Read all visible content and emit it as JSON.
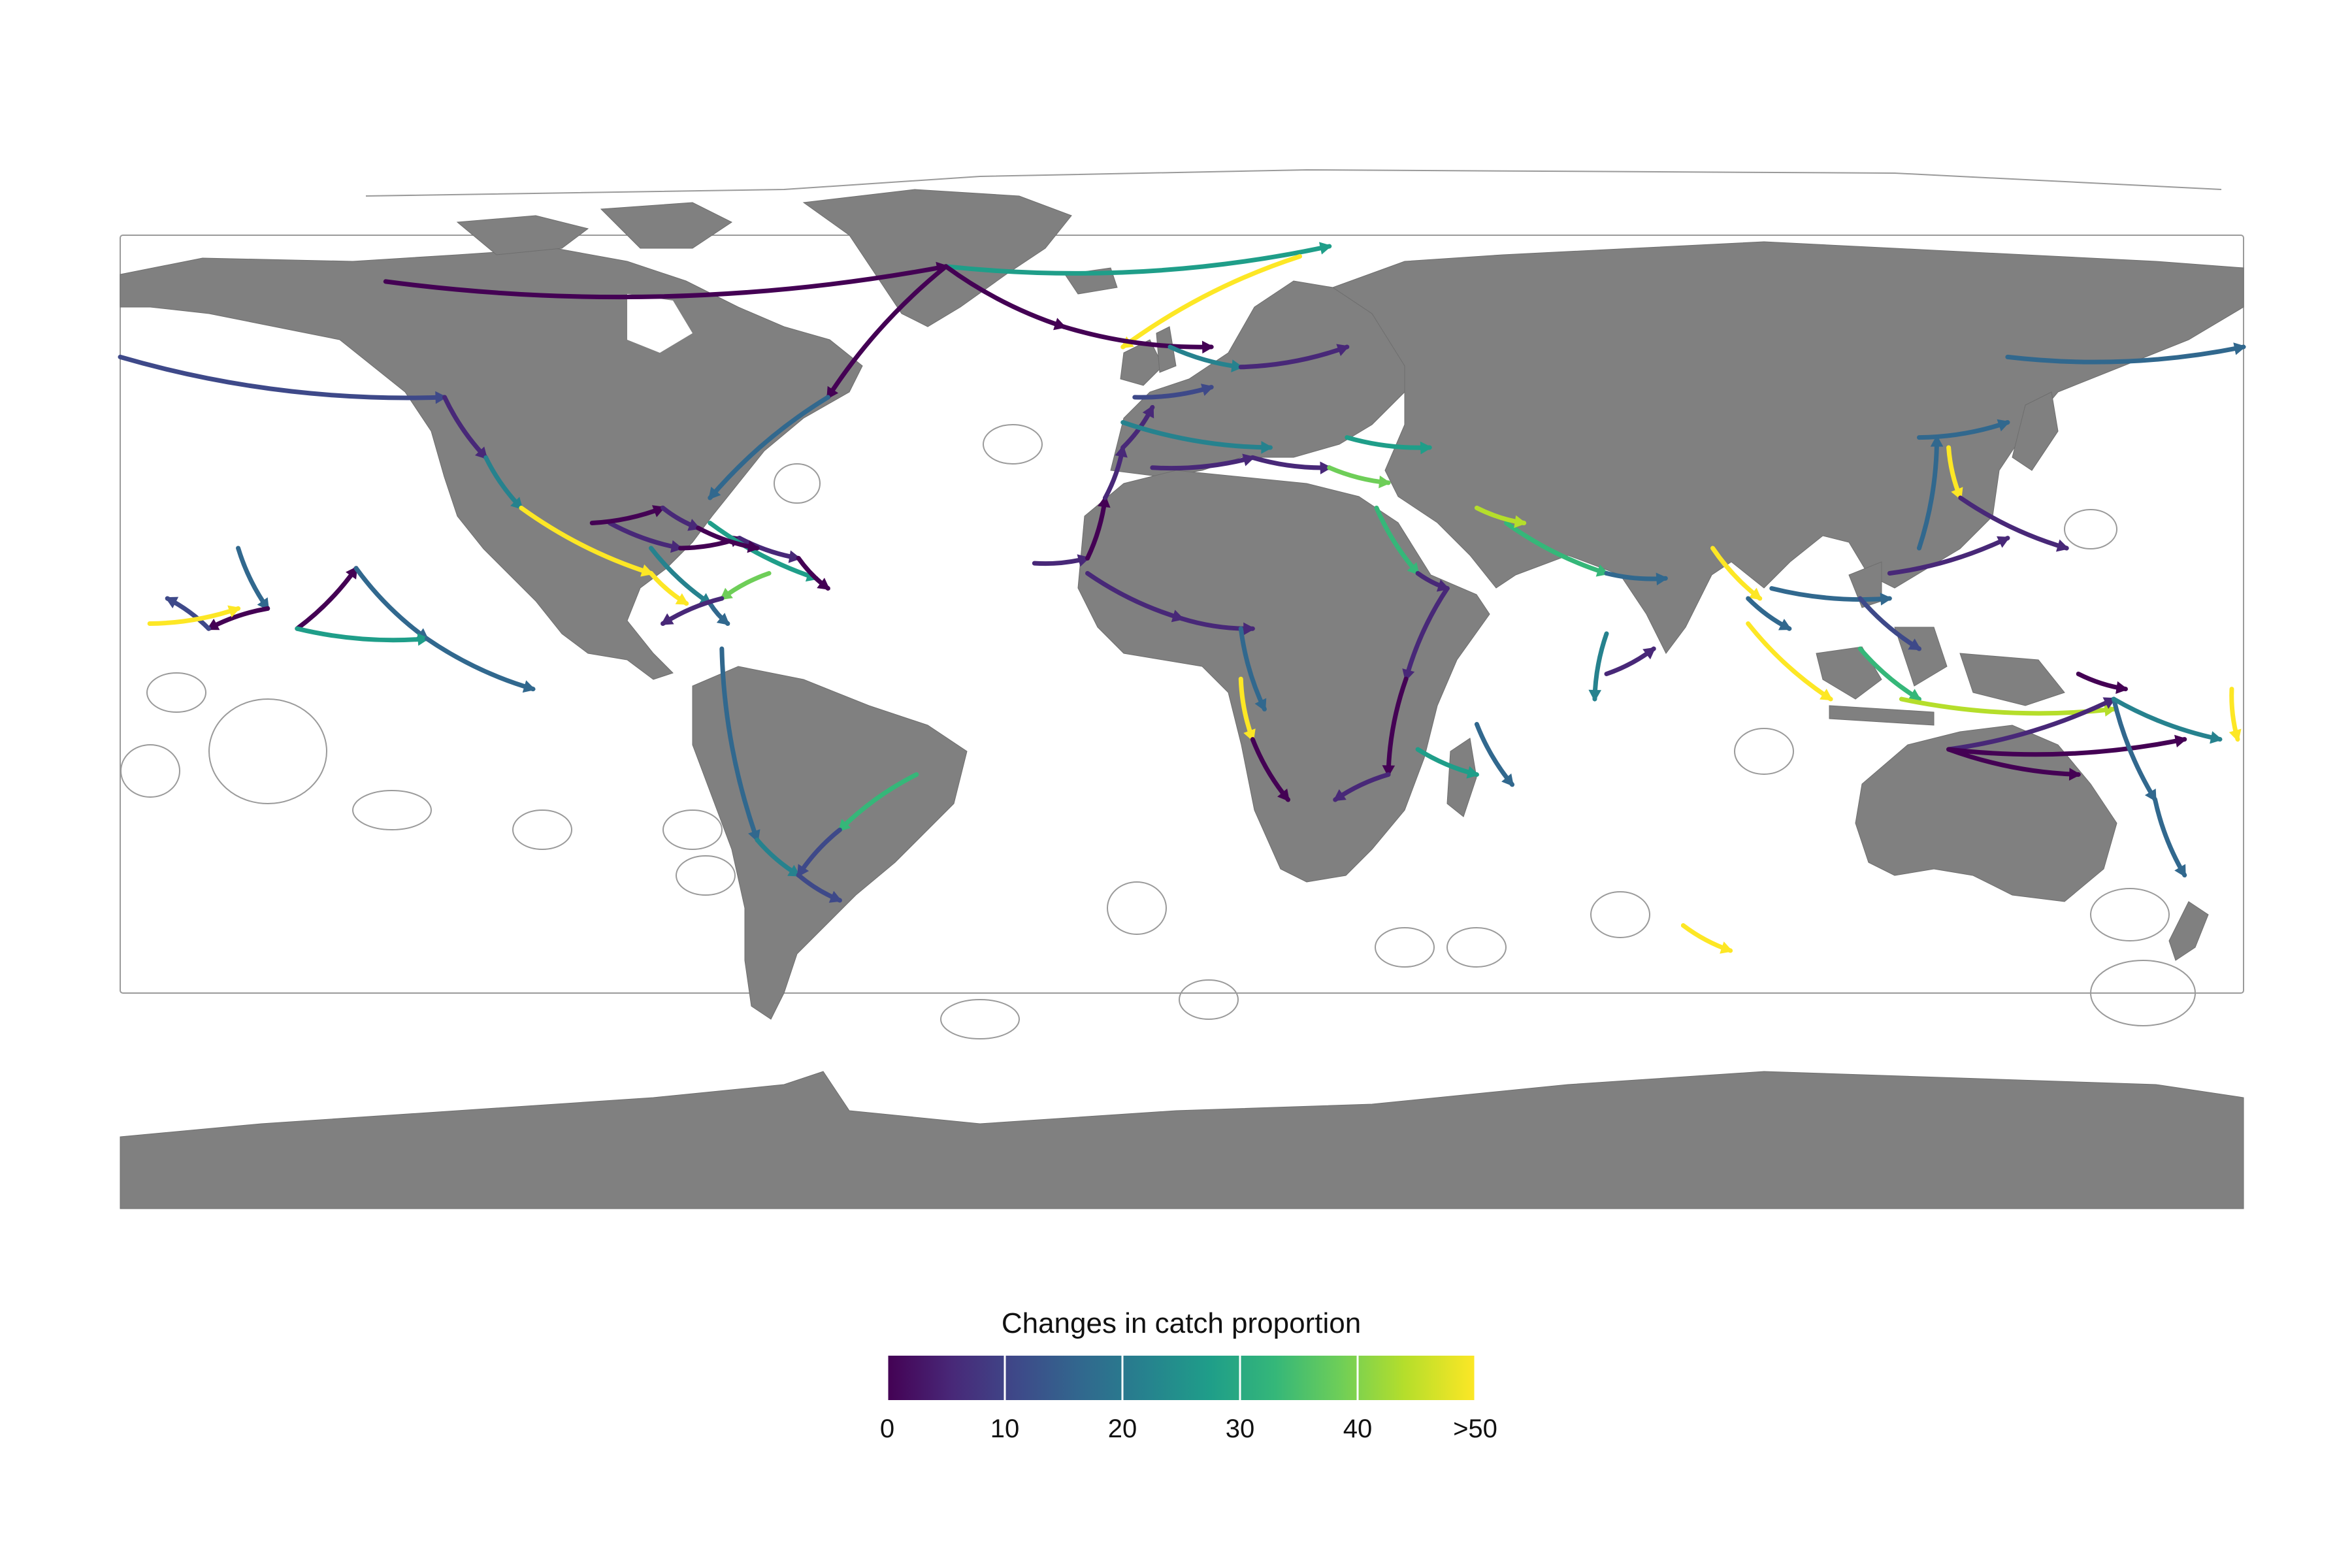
{
  "legend": {
    "title": "Changes in catch proportion",
    "ticks": [
      "0",
      "10",
      "20",
      "30",
      "40",
      ">50"
    ],
    "palette": [
      "#440154",
      "#482878",
      "#3e4989",
      "#31688e",
      "#26828e",
      "#1f9e89",
      "#35b779",
      "#6ece58",
      "#b5de2b",
      "#fde725"
    ]
  },
  "colors": {
    "land": "#808080",
    "eez_border": "#9a9a9a",
    "ocean": "#ffffff"
  },
  "map": {
    "type": "flow-map",
    "projection": "equirectangular-world",
    "basemap": "world land with EEZ outlines",
    "flows": [
      {
        "from": [
          -135,
          73
        ],
        "to": [
          -40,
          76
        ],
        "value": 0
      },
      {
        "from": [
          -40,
          76
        ],
        "to": [
          25,
          80
        ],
        "value": 30
      },
      {
        "from": [
          -40,
          76
        ],
        "to": [
          -60,
          50
        ],
        "value": 0
      },
      {
        "from": [
          -60,
          50
        ],
        "to": [
          -80,
          30
        ],
        "value": 15
      },
      {
        "from": [
          20,
          78
        ],
        "to": [
          -10,
          60
        ],
        "value": 55
      },
      {
        "from": [
          -40,
          76
        ],
        "to": [
          -20,
          64
        ],
        "value": 0
      },
      {
        "from": [
          -20,
          64
        ],
        "to": [
          5,
          60
        ],
        "value": 0
      },
      {
        "from": [
          -180,
          58
        ],
        "to": [
          -125,
          50
        ],
        "value": 12
      },
      {
        "from": [
          -125,
          50
        ],
        "to": [
          -118,
          38
        ],
        "value": 5
      },
      {
        "from": [
          -118,
          38
        ],
        "to": [
          -112,
          28
        ],
        "value": 20
      },
      {
        "from": [
          -112,
          28
        ],
        "to": [
          -90,
          15
        ],
        "value": 55
      },
      {
        "from": [
          -90,
          15
        ],
        "to": [
          -84,
          9
        ],
        "value": 50
      },
      {
        "from": [
          -97,
          25
        ],
        "to": [
          -85,
          20
        ],
        "value": 5
      },
      {
        "from": [
          -85,
          20
        ],
        "to": [
          -75,
          22
        ],
        "value": 0
      },
      {
        "from": [
          -75,
          22
        ],
        "to": [
          -65,
          18
        ],
        "value": 8
      },
      {
        "from": [
          -80,
          25
        ],
        "to": [
          -62,
          14
        ],
        "value": 30
      },
      {
        "from": [
          -90,
          20
        ],
        "to": [
          -80,
          9
        ],
        "value": 20
      },
      {
        "from": [
          -65,
          18
        ],
        "to": [
          -60,
          12
        ],
        "value": 2
      },
      {
        "from": [
          -70,
          15
        ],
        "to": [
          -78,
          10
        ],
        "value": 40
      },
      {
        "from": [
          -80,
          9
        ],
        "to": [
          -77,
          5
        ],
        "value": 18
      },
      {
        "from": [
          -100,
          25
        ],
        "to": [
          -88,
          28
        ],
        "value": 1
      },
      {
        "from": [
          -88,
          28
        ],
        "to": [
          -82,
          24
        ],
        "value": 3
      },
      {
        "from": [
          -82,
          24
        ],
        "to": [
          -72,
          20
        ],
        "value": 0
      },
      {
        "from": [
          -78,
          10
        ],
        "to": [
          -88,
          5
        ],
        "value": 6
      },
      {
        "from": [
          -78,
          0
        ],
        "to": [
          -72,
          -38
        ],
        "value": 15
      },
      {
        "from": [
          -72,
          -38
        ],
        "to": [
          -65,
          -45
        ],
        "value": 22
      },
      {
        "from": [
          -65,
          -45
        ],
        "to": [
          -58,
          -50
        ],
        "value": 10
      },
      {
        "from": [
          -45,
          -25
        ],
        "to": [
          -58,
          -36
        ],
        "value": 32
      },
      {
        "from": [
          -58,
          -36
        ],
        "to": [
          -65,
          -45
        ],
        "value": 10
      },
      {
        "from": [
          -160,
          20
        ],
        "to": [
          -155,
          8
        ],
        "value": 18
      },
      {
        "from": [
          -155,
          8
        ],
        "to": [
          -165,
          4
        ],
        "value": 0
      },
      {
        "from": [
          -165,
          4
        ],
        "to": [
          -172,
          10
        ],
        "value": 12
      },
      {
        "from": [
          -175,
          5
        ],
        "to": [
          -160,
          8
        ],
        "value": 50
      },
      {
        "from": [
          -150,
          4
        ],
        "to": [
          -140,
          16
        ],
        "value": 0
      },
      {
        "from": [
          -140,
          16
        ],
        "to": [
          -128,
          2
        ],
        "value": 14
      },
      {
        "from": [
          -150,
          4
        ],
        "to": [
          -128,
          2
        ],
        "value": 28
      },
      {
        "from": [
          -128,
          2
        ],
        "to": [
          -110,
          -8
        ],
        "value": 14
      },
      {
        "from": [
          -25,
          17
        ],
        "to": [
          -16,
          18
        ],
        "value": 8
      },
      {
        "from": [
          -16,
          18
        ],
        "to": [
          -13,
          30
        ],
        "value": 2
      },
      {
        "from": [
          -13,
          30
        ],
        "to": [
          -10,
          40
        ],
        "value": 3
      },
      {
        "from": [
          -10,
          40
        ],
        "to": [
          -5,
          48
        ],
        "value": 3
      },
      {
        "from": [
          -10,
          45
        ],
        "to": [
          15,
          40
        ],
        "value": 20
      },
      {
        "from": [
          -5,
          36
        ],
        "to": [
          12,
          38
        ],
        "value": 5
      },
      {
        "from": [
          12,
          38
        ],
        "to": [
          25,
          36
        ],
        "value": 8
      },
      {
        "from": [
          25,
          36
        ],
        "to": [
          35,
          33
        ],
        "value": 40
      },
      {
        "from": [
          28,
          42
        ],
        "to": [
          42,
          40
        ],
        "value": 30
      },
      {
        "from": [
          -16,
          15
        ],
        "to": [
          0,
          6
        ],
        "value": 8
      },
      {
        "from": [
          0,
          6
        ],
        "to": [
          12,
          4
        ],
        "value": 3
      },
      {
        "from": [
          10,
          4
        ],
        "to": [
          14,
          -12
        ],
        "value": 16
      },
      {
        "from": [
          10,
          -6
        ],
        "to": [
          12,
          -18
        ],
        "value": 50
      },
      {
        "from": [
          12,
          -18
        ],
        "to": [
          18,
          -30
        ],
        "value": 2
      },
      {
        "from": [
          -2,
          60
        ],
        "to": [
          10,
          56
        ],
        "value": 22
      },
      {
        "from": [
          10,
          56
        ],
        "to": [
          28,
          60
        ],
        "value": 5
      },
      {
        "from": [
          -8,
          50
        ],
        "to": [
          5,
          52
        ],
        "value": 12
      },
      {
        "from": [
          33,
          28
        ],
        "to": [
          40,
          15
        ],
        "value": 35
      },
      {
        "from": [
          40,
          15
        ],
        "to": [
          45,
          12
        ],
        "value": 3
      },
      {
        "from": [
          55,
          25
        ],
        "to": [
          72,
          15
        ],
        "value": 32
      },
      {
        "from": [
          72,
          15
        ],
        "to": [
          82,
          14
        ],
        "value": 18
      },
      {
        "from": [
          50,
          28
        ],
        "to": [
          58,
          25
        ],
        "value": 45
      },
      {
        "from": [
          45,
          12
        ],
        "to": [
          38,
          -6
        ],
        "value": 4
      },
      {
        "from": [
          38,
          -6
        ],
        "to": [
          35,
          -25
        ],
        "value": 2
      },
      {
        "from": [
          35,
          -25
        ],
        "to": [
          26,
          -30
        ],
        "value": 4
      },
      {
        "from": [
          50,
          -15
        ],
        "to": [
          56,
          -27
        ],
        "value": 18
      },
      {
        "from": [
          40,
          -20
        ],
        "to": [
          50,
          -25
        ],
        "value": 28
      },
      {
        "from": [
          72,
          3
        ],
        "to": [
          70,
          -10
        ],
        "value": 20
      },
      {
        "from": [
          72,
          -5
        ],
        "to": [
          80,
          0
        ],
        "value": 5
      },
      {
        "from": [
          90,
          20
        ],
        "to": [
          98,
          10
        ],
        "value": 50
      },
      {
        "from": [
          96,
          5
        ],
        "to": [
          110,
          -10
        ],
        "value": 55
      },
      {
        "from": [
          96,
          10
        ],
        "to": [
          103,
          4
        ],
        "value": 18
      },
      {
        "from": [
          100,
          12
        ],
        "to": [
          120,
          10
        ],
        "value": 14
      },
      {
        "from": [
          115,
          10
        ],
        "to": [
          125,
          0
        ],
        "value": 12
      },
      {
        "from": [
          120,
          15
        ],
        "to": [
          140,
          22
        ],
        "value": 3
      },
      {
        "from": [
          125,
          20
        ],
        "to": [
          128,
          42
        ],
        "value": 15
      },
      {
        "from": [
          125,
          42
        ],
        "to": [
          140,
          45
        ],
        "value": 16
      },
      {
        "from": [
          130,
          40
        ],
        "to": [
          132,
          30
        ],
        "value": 55
      },
      {
        "from": [
          132,
          30
        ],
        "to": [
          150,
          20
        ],
        "value": 8
      },
      {
        "from": [
          115,
          0
        ],
        "to": [
          125,
          -10
        ],
        "value": 35
      },
      {
        "from": [
          122,
          -10
        ],
        "to": [
          158,
          -12
        ],
        "value": 45
      },
      {
        "from": [
          130,
          -20
        ],
        "to": [
          158,
          -10
        ],
        "value": 6
      },
      {
        "from": [
          130,
          -20
        ],
        "to": [
          152,
          -25
        ],
        "value": 2
      },
      {
        "from": [
          130,
          -20
        ],
        "to": [
          170,
          -18
        ],
        "value": 0
      },
      {
        "from": [
          152,
          -5
        ],
        "to": [
          160,
          -8
        ],
        "value": 2
      },
      {
        "from": [
          158,
          -10
        ],
        "to": [
          165,
          -30
        ],
        "value": 14
      },
      {
        "from": [
          165,
          -30
        ],
        "to": [
          170,
          -45
        ],
        "value": 16
      },
      {
        "from": [
          158,
          -10
        ],
        "to": [
          176,
          -18
        ],
        "value": 20
      },
      {
        "from": [
          178,
          -8
        ],
        "to": [
          179,
          -18
        ],
        "value": 50
      },
      {
        "from": [
          140,
          58
        ],
        "to": [
          180,
          60
        ],
        "value": 14
      },
      {
        "from": [
          85,
          -55
        ],
        "to": [
          93,
          -60
        ],
        "value": 55
      }
    ]
  }
}
